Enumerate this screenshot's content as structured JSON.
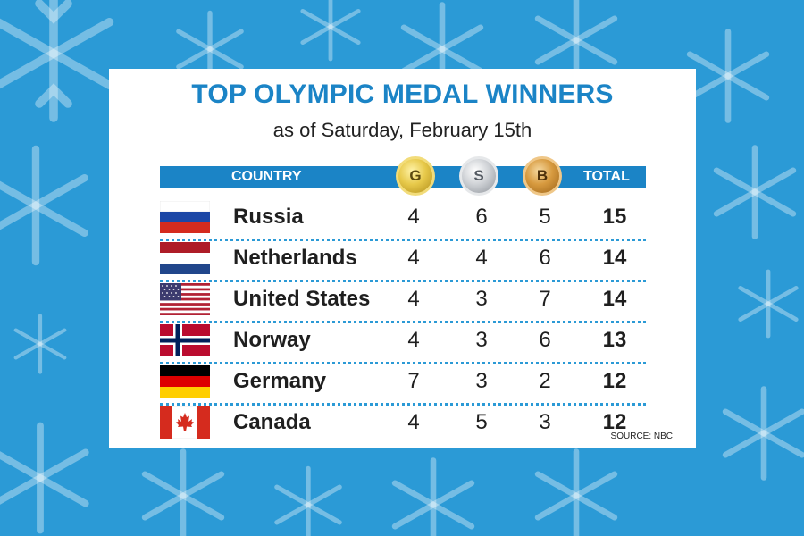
{
  "title": "TOP OLYMPIC MEDAL WINNERS",
  "subtitle": "as of Saturday, February 15th",
  "header": {
    "country": "COUNTRY",
    "gold": "G",
    "silver": "S",
    "bronze": "B",
    "total": "TOTAL"
  },
  "rows": [
    {
      "country": "Russia",
      "gold": "4",
      "silver": "6",
      "bronze": "5",
      "total": "15"
    },
    {
      "country": "Netherlands",
      "gold": "4",
      "silver": "4",
      "bronze": "6",
      "total": "14"
    },
    {
      "country": "United States",
      "gold": "4",
      "silver": "3",
      "bronze": "7",
      "total": "14"
    },
    {
      "country": "Norway",
      "gold": "4",
      "silver": "3",
      "bronze": "6",
      "total": "13"
    },
    {
      "country": "Germany",
      "gold": "7",
      "silver": "3",
      "bronze": "2",
      "total": "12"
    },
    {
      "country": "Canada",
      "gold": "4",
      "silver": "5",
      "bronze": "3",
      "total": "12"
    }
  ],
  "source": "SOURCE: NBC",
  "colors": {
    "background": "#2b9ad6",
    "accent": "#1b84c6",
    "gold": "#e7c94a",
    "silver": "#cfd2d6",
    "bronze": "#d79a3f"
  }
}
